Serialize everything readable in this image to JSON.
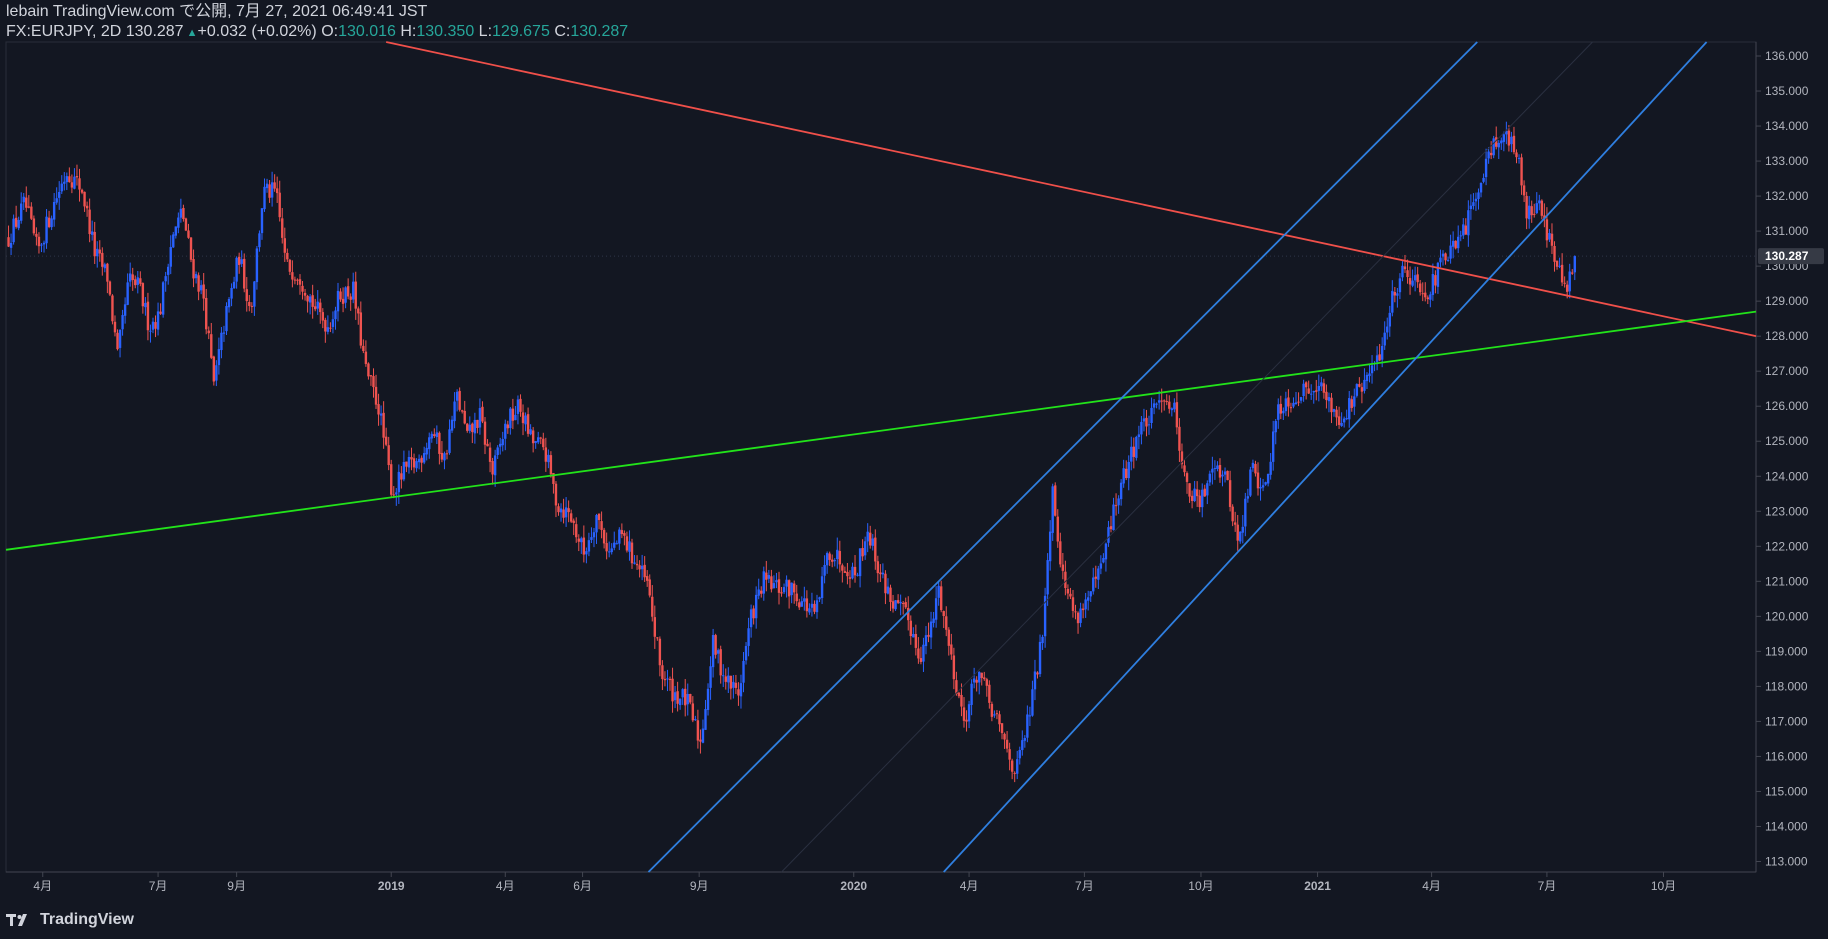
{
  "header": {
    "publish_line": "lebain TradingView.com で公開, 7月 27, 2021 06:49:41 JST",
    "symbol_line": "FX:EURJPY, 2D 130.287",
    "change": "+0.032 (+0.02%)",
    "open_label": "O:",
    "open_value": "130.016",
    "high_label": "H:",
    "high_value": "130.350",
    "low_label": "L:",
    "low_value": "129.675",
    "close_label": "C:",
    "close_value": "130.287"
  },
  "footer": {
    "brand": "TradingView"
  },
  "colors": {
    "background": "#131722",
    "up_candle": "#2962ff",
    "down_candle": "#ef5350",
    "resistance_line": "#f0504a",
    "support_line": "#22e31a",
    "channel_line": "#2f7fe0",
    "axis_text": "#b2b5be",
    "price_badge": "#363a45"
  },
  "chart_data": {
    "type": "candlestick",
    "symbol": "FX:EURJPY",
    "interval": "2D",
    "y_range": [
      112.7,
      136.4
    ],
    "last_price": 130.287,
    "last_price_label": "130.287",
    "y_ticks": [
      113,
      114,
      115,
      116,
      117,
      118,
      119,
      120,
      121,
      122,
      123,
      124,
      125,
      126,
      127,
      128,
      129,
      130,
      131,
      132,
      133,
      134,
      135,
      136
    ],
    "y_tick_labels": [
      "113.000",
      "114.000",
      "115.000",
      "116.000",
      "117.000",
      "118.000",
      "119.000",
      "120.000",
      "121.000",
      "122.000",
      "123.000",
      "124.000",
      "125.000",
      "126.000",
      "127.000",
      "128.000",
      "129.000",
      "130.000",
      "131.000",
      "132.000",
      "133.000",
      "134.000",
      "135.000",
      "136.000"
    ],
    "x_range": [
      "2018-03-03",
      "2021-12-13"
    ],
    "x_ticks": [
      {
        "date": "2018-04-01",
        "label": "4月",
        "bold": false
      },
      {
        "date": "2018-07-01",
        "label": "7月",
        "bold": false
      },
      {
        "date": "2018-09-01",
        "label": "9月",
        "bold": false
      },
      {
        "date": "2019-01-01",
        "label": "2019",
        "bold": true
      },
      {
        "date": "2019-04-01",
        "label": "4月",
        "bold": false
      },
      {
        "date": "2019-06-01",
        "label": "6月",
        "bold": false
      },
      {
        "date": "2019-09-01",
        "label": "9月",
        "bold": false
      },
      {
        "date": "2020-01-01",
        "label": "2020",
        "bold": true
      },
      {
        "date": "2020-04-01",
        "label": "4月",
        "bold": false
      },
      {
        "date": "2020-07-01",
        "label": "7月",
        "bold": false
      },
      {
        "date": "2020-10-01",
        "label": "10月",
        "bold": false
      },
      {
        "date": "2021-01-01",
        "label": "2021",
        "bold": true
      },
      {
        "date": "2021-04-01",
        "label": "4月",
        "bold": false
      },
      {
        "date": "2021-07-01",
        "label": "7月",
        "bold": false
      },
      {
        "date": "2021-10-01",
        "label": "10月",
        "bold": false
      }
    ],
    "price_path": [
      [
        "2018-03-05",
        130.8
      ],
      [
        "2018-03-18",
        131.8
      ],
      [
        "2018-03-28",
        130.4
      ],
      [
        "2018-04-12",
        132.0
      ],
      [
        "2018-04-20",
        132.7
      ],
      [
        "2018-05-02",
        132.2
      ],
      [
        "2018-05-12",
        130.4
      ],
      [
        "2018-05-22",
        129.7
      ],
      [
        "2018-05-30",
        127.4
      ],
      [
        "2018-06-08",
        129.6
      ],
      [
        "2018-06-16",
        129.4
      ],
      [
        "2018-06-24",
        128.3
      ],
      [
        "2018-07-02",
        128.6
      ],
      [
        "2018-07-10",
        130.5
      ],
      [
        "2018-07-20",
        131.6
      ],
      [
        "2018-07-28",
        130.0
      ],
      [
        "2018-08-06",
        129.1
      ],
      [
        "2018-08-14",
        126.6
      ],
      [
        "2018-08-22",
        128.3
      ],
      [
        "2018-09-03",
        130.3
      ],
      [
        "2018-09-12",
        128.7
      ],
      [
        "2018-09-22",
        132.1
      ],
      [
        "2018-10-02",
        132.1
      ],
      [
        "2018-10-10",
        130.0
      ],
      [
        "2018-10-20",
        129.8
      ],
      [
        "2018-11-02",
        128.8
      ],
      [
        "2018-11-12",
        128.3
      ],
      [
        "2018-11-22",
        129.2
      ],
      [
        "2018-12-02",
        129.3
      ],
      [
        "2018-12-12",
        127.0
      ],
      [
        "2018-12-22",
        126.0
      ],
      [
        "2019-01-02",
        123.5
      ],
      [
        "2019-01-12",
        124.2
      ],
      [
        "2019-01-22",
        124.4
      ],
      [
        "2019-02-02",
        125.3
      ],
      [
        "2019-02-12",
        124.5
      ],
      [
        "2019-02-22",
        126.3
      ],
      [
        "2019-03-02",
        125.1
      ],
      [
        "2019-03-12",
        125.7
      ],
      [
        "2019-03-22",
        124.1
      ],
      [
        "2019-04-02",
        125.5
      ],
      [
        "2019-04-12",
        126.0
      ],
      [
        "2019-04-22",
        125.0
      ],
      [
        "2019-05-02",
        124.8
      ],
      [
        "2019-05-12",
        123.2
      ],
      [
        "2019-05-22",
        122.9
      ],
      [
        "2019-06-02",
        121.8
      ],
      [
        "2019-06-12",
        122.9
      ],
      [
        "2019-06-22",
        121.8
      ],
      [
        "2019-07-02",
        122.3
      ],
      [
        "2019-07-12",
        121.6
      ],
      [
        "2019-07-22",
        120.9
      ],
      [
        "2019-08-02",
        118.4
      ],
      [
        "2019-08-12",
        117.8
      ],
      [
        "2019-08-22",
        117.6
      ],
      [
        "2019-09-02",
        116.4
      ],
      [
        "2019-09-12",
        119.2
      ],
      [
        "2019-09-22",
        118.2
      ],
      [
        "2019-10-02",
        117.8
      ],
      [
        "2019-10-12",
        120.0
      ],
      [
        "2019-10-22",
        121.0
      ],
      [
        "2019-11-02",
        120.8
      ],
      [
        "2019-11-12",
        120.8
      ],
      [
        "2019-11-22",
        120.4
      ],
      [
        "2019-12-02",
        120.0
      ],
      [
        "2019-12-12",
        121.9
      ],
      [
        "2019-12-22",
        121.6
      ],
      [
        "2020-01-02",
        121.2
      ],
      [
        "2020-01-12",
        122.5
      ],
      [
        "2020-01-22",
        121.2
      ],
      [
        "2020-02-02",
        120.3
      ],
      [
        "2020-02-12",
        120.0
      ],
      [
        "2020-02-22",
        118.9
      ],
      [
        "2020-03-02",
        119.6
      ],
      [
        "2020-03-08",
        120.8
      ],
      [
        "2020-03-18",
        118.8
      ],
      [
        "2020-03-28",
        117.0
      ],
      [
        "2020-04-08",
        118.5
      ],
      [
        "2020-04-18",
        117.4
      ],
      [
        "2020-04-28",
        116.5
      ],
      [
        "2020-05-08",
        115.5
      ],
      [
        "2020-05-18",
        117.1
      ],
      [
        "2020-05-28",
        119.2
      ],
      [
        "2020-06-06",
        123.7
      ],
      [
        "2020-06-14",
        121.1
      ],
      [
        "2020-06-24",
        120.0
      ],
      [
        "2020-07-04",
        120.5
      ],
      [
        "2020-07-14",
        121.3
      ],
      [
        "2020-07-24",
        123.0
      ],
      [
        "2020-08-04",
        124.3
      ],
      [
        "2020-08-14",
        125.4
      ],
      [
        "2020-08-24",
        125.7
      ],
      [
        "2020-08-31",
        126.4
      ],
      [
        "2020-09-10",
        125.9
      ],
      [
        "2020-09-20",
        123.6
      ],
      [
        "2020-10-01",
        123.2
      ],
      [
        "2020-10-10",
        124.5
      ],
      [
        "2020-10-20",
        124.0
      ],
      [
        "2020-10-31",
        122.0
      ],
      [
        "2020-11-10",
        124.3
      ],
      [
        "2020-11-20",
        123.5
      ],
      [
        "2020-12-01",
        126.0
      ],
      [
        "2020-12-10",
        126.2
      ],
      [
        "2020-12-20",
        126.4
      ],
      [
        "2020-12-31",
        126.7
      ],
      [
        "2021-01-10",
        126.1
      ],
      [
        "2021-01-20",
        125.6
      ],
      [
        "2021-01-31",
        126.3
      ],
      [
        "2021-02-10",
        126.8
      ],
      [
        "2021-02-20",
        127.6
      ],
      [
        "2021-03-01",
        129.1
      ],
      [
        "2021-03-10",
        130.0
      ],
      [
        "2021-03-20",
        129.5
      ],
      [
        "2021-03-31",
        129.3
      ],
      [
        "2021-04-10",
        130.2
      ],
      [
        "2021-04-20",
        130.5
      ],
      [
        "2021-04-30",
        131.3
      ],
      [
        "2021-05-10",
        132.6
      ],
      [
        "2021-05-20",
        133.6
      ],
      [
        "2021-05-30",
        133.7
      ],
      [
        "2021-06-08",
        133.1
      ],
      [
        "2021-06-16",
        131.4
      ],
      [
        "2021-06-24",
        132.0
      ],
      [
        "2021-07-01",
        131.0
      ],
      [
        "2021-07-08",
        130.1
      ],
      [
        "2021-07-16",
        129.2
      ],
      [
        "2021-07-24",
        130.29
      ]
    ],
    "trendlines": [
      {
        "kind": "resistance",
        "color": "#f0504a",
        "from": [
          "2018-12-28",
          136.4
        ],
        "to": [
          "2021-12-13",
          128.0
        ]
      },
      {
        "kind": "support",
        "color": "#22e31a",
        "from": [
          "2018-03-03",
          121.9
        ],
        "to": [
          "2021-12-13",
          128.7
        ]
      },
      {
        "kind": "channel-upper",
        "color": "#2f7fe0",
        "from": [
          "2019-07-23",
          112.7
        ],
        "to": [
          "2021-05-07",
          136.4
        ]
      },
      {
        "kind": "channel-lower",
        "color": "#2f7fe0",
        "from": [
          "2020-03-12",
          112.7
        ],
        "to": [
          "2021-11-04",
          136.4
        ]
      },
      {
        "kind": "channel-mid",
        "color": "#2a3040",
        "from": [
          "2019-11-05",
          112.7
        ],
        "to": [
          "2021-08-06",
          136.4
        ]
      }
    ]
  }
}
